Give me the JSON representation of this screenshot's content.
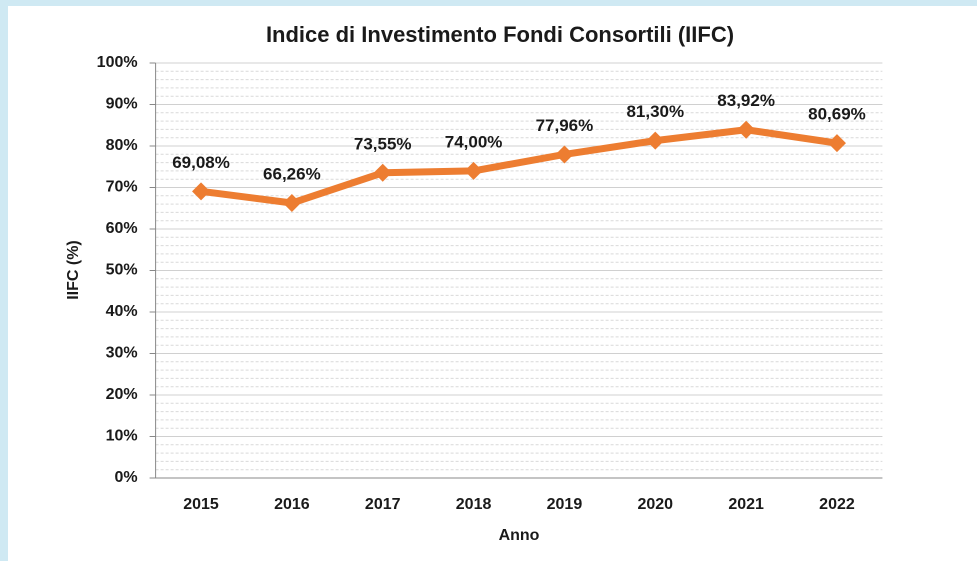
{
  "chart_data": {
    "type": "line",
    "title": "Indice di Investimento Fondi Consortili (IIFC)",
    "x_label": "Anno",
    "y_label": "IIFC (%)",
    "categories": [
      "2015",
      "2016",
      "2017",
      "2018",
      "2019",
      "2020",
      "2021",
      "2022"
    ],
    "series": [
      {
        "name": "IIFC",
        "color": "#ed7d31",
        "values": [
          69.08,
          66.26,
          73.55,
          74.0,
          77.96,
          81.3,
          83.92,
          80.69
        ],
        "value_labels": [
          "69,08%",
          "66,26%",
          "73,55%",
          "74,00%",
          "77,96%",
          "81,30%",
          "83,92%",
          "80,69%"
        ]
      }
    ],
    "ylim": [
      0,
      100
    ],
    "yticks": [
      {
        "value": 0,
        "label": "0%"
      },
      {
        "value": 10,
        "label": "10%"
      },
      {
        "value": 20,
        "label": "20%"
      },
      {
        "value": 30,
        "label": "30%"
      },
      {
        "value": 40,
        "label": "40%"
      },
      {
        "value": 50,
        "label": "50%"
      },
      {
        "value": 60,
        "label": "60%"
      },
      {
        "value": 70,
        "label": "70%"
      },
      {
        "value": 80,
        "label": "80%"
      },
      {
        "value": 90,
        "label": "90%"
      },
      {
        "value": 100,
        "label": "100%"
      }
    ],
    "grid": true
  }
}
